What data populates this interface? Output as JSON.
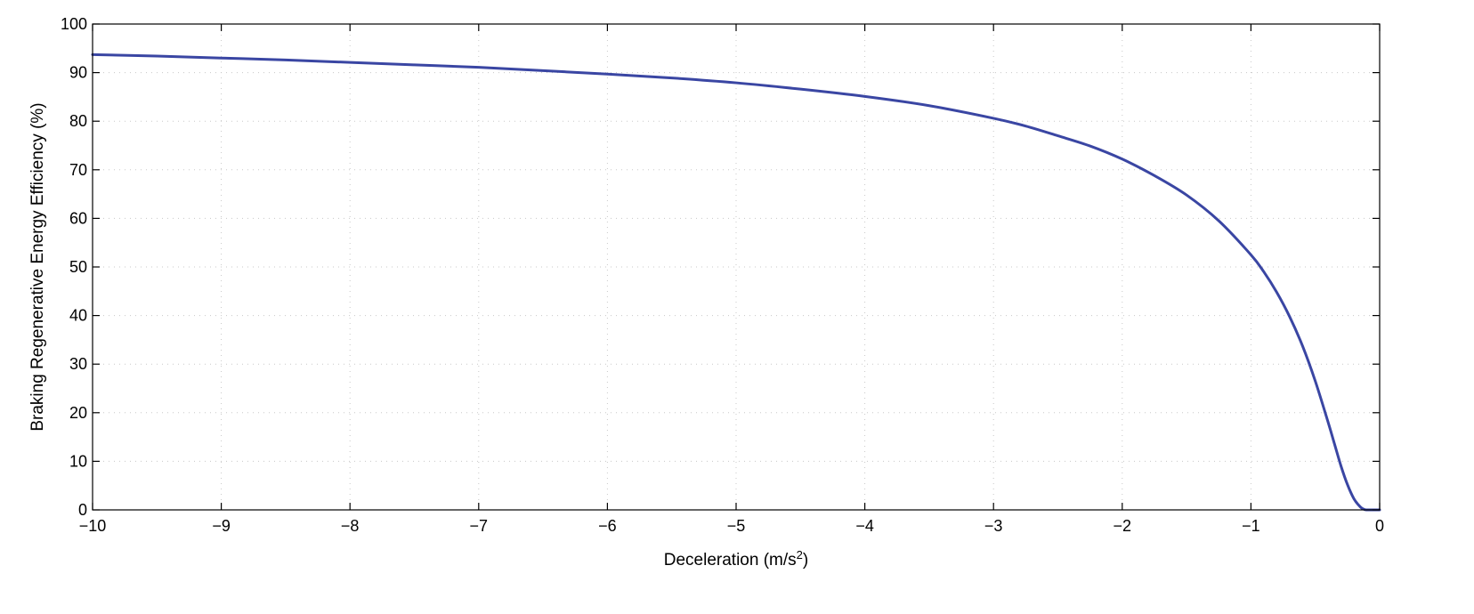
{
  "chart_data": {
    "type": "line",
    "title": "",
    "xlabel": "Deceleration (m/s",
    "xlabel_sup": "2",
    "xlabel_suffix": ")",
    "ylabel": "Braking Regenerative Energy Efficiency (%)",
    "xlim": [
      -10,
      0
    ],
    "ylim": [
      0,
      100
    ],
    "xticks": [
      -10,
      -9,
      -8,
      -7,
      -6,
      -5,
      -4,
      -3,
      -2,
      -1,
      0
    ],
    "yticks": [
      0,
      10,
      20,
      30,
      40,
      50,
      60,
      70,
      80,
      90,
      100
    ],
    "xtick_labels": [
      "−10",
      "−9",
      "−8",
      "−7",
      "−6",
      "−5",
      "−4",
      "−3",
      "−2",
      "−1",
      "0"
    ],
    "ytick_labels": [
      "0",
      "10",
      "20",
      "30",
      "40",
      "50",
      "60",
      "70",
      "80",
      "90",
      "100"
    ],
    "grid": true,
    "series": [
      {
        "color": "#3a46a3",
        "x": [
          -10,
          -9.5,
          -9,
          -8.5,
          -8,
          -7.5,
          -7,
          -6.5,
          -6,
          -5.5,
          -5,
          -4.5,
          -4,
          -3.5,
          -3,
          -2.75,
          -2.5,
          -2.25,
          -2,
          -1.75,
          -1.5,
          -1.25,
          -1,
          -0.9,
          -0.8,
          -0.7,
          -0.6,
          -0.5,
          -0.4,
          -0.35,
          -0.3,
          -0.25,
          -0.2,
          -0.15,
          -0.12,
          -0.1,
          -0.08,
          -0.05,
          0
        ],
        "y": [
          93.7,
          93.4,
          93.0,
          92.6,
          92.1,
          91.6,
          91.1,
          90.4,
          89.7,
          88.9,
          87.9,
          86.6,
          85.1,
          83.2,
          80.6,
          79.0,
          77.0,
          74.9,
          72.2,
          68.8,
          64.8,
          59.5,
          52.5,
          49.0,
          44.8,
          39.8,
          33.8,
          26.5,
          18.0,
          13.5,
          9.0,
          5.2,
          2.3,
          0.6,
          0.1,
          0.0,
          0.0,
          0.0,
          0.0
        ]
      }
    ]
  }
}
